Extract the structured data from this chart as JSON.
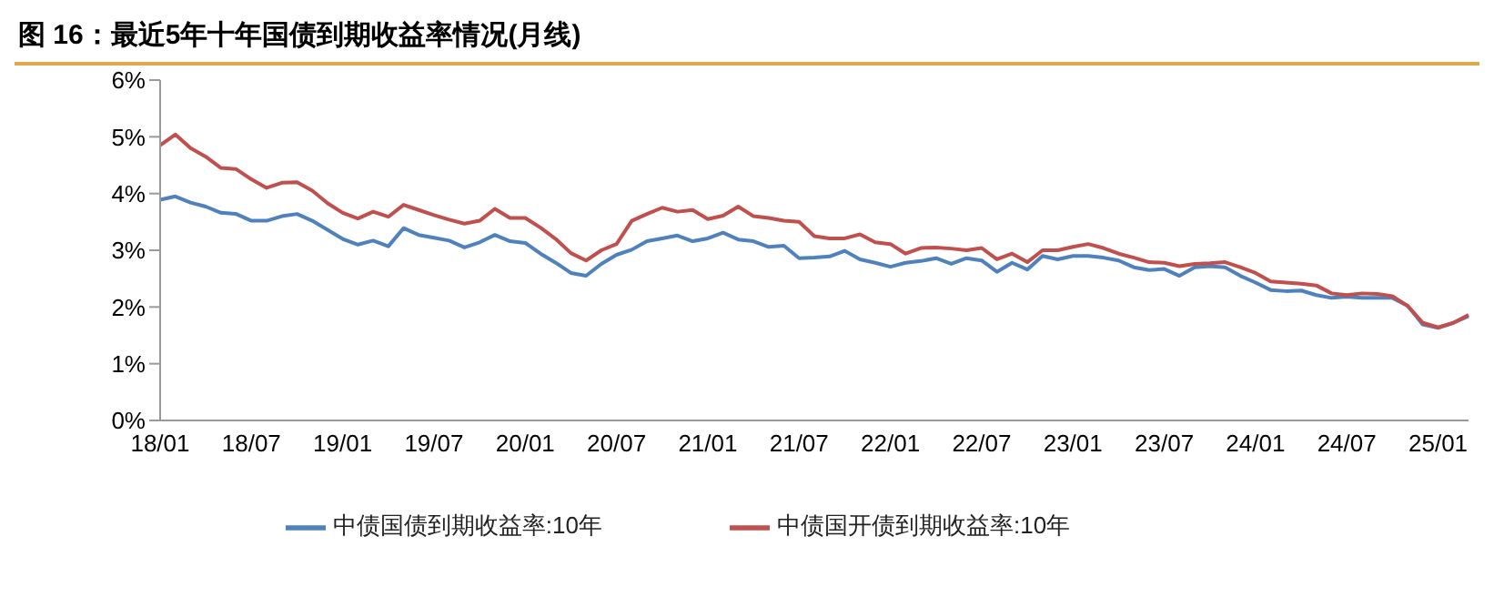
{
  "chart_data": {
    "type": "line",
    "title": "图 16：最近5年十年国债到期收益率情况(月线)",
    "categories": [
      "18/01",
      null,
      null,
      null,
      null,
      null,
      "18/07",
      null,
      null,
      null,
      null,
      null,
      "19/01",
      null,
      null,
      null,
      null,
      null,
      "19/07",
      null,
      null,
      null,
      null,
      null,
      "20/01",
      null,
      null,
      null,
      null,
      null,
      "20/07",
      null,
      null,
      null,
      null,
      null,
      "21/01",
      null,
      null,
      null,
      null,
      null,
      "21/07",
      null,
      null,
      null,
      null,
      null,
      "22/01",
      null,
      null,
      null,
      null,
      null,
      "22/07",
      null,
      null,
      null,
      null,
      null,
      "23/01",
      null,
      null,
      null,
      null,
      null,
      "23/07",
      null,
      null,
      null,
      null,
      null,
      "24/01",
      null,
      null,
      null,
      null,
      null,
      "24/07",
      null,
      null,
      null,
      null,
      null,
      "25/01",
      null,
      null
    ],
    "series": [
      {
        "name": "中债国债到期收益率:10年",
        "color": "#4f81bd",
        "values": [
          3.89,
          3.95,
          3.84,
          3.77,
          3.66,
          3.64,
          3.52,
          3.52,
          3.6,
          3.64,
          3.52,
          3.36,
          3.2,
          3.1,
          3.17,
          3.07,
          3.39,
          3.27,
          3.22,
          3.17,
          3.05,
          3.14,
          3.27,
          3.16,
          3.13,
          2.94,
          2.78,
          2.6,
          2.55,
          2.76,
          2.92,
          3.01,
          3.16,
          3.21,
          3.26,
          3.16,
          3.21,
          3.31,
          3.19,
          3.16,
          3.06,
          3.08,
          2.86,
          2.87,
          2.89,
          2.99,
          2.84,
          2.78,
          2.71,
          2.78,
          2.81,
          2.86,
          2.76,
          2.86,
          2.82,
          2.62,
          2.78,
          2.66,
          2.9,
          2.84,
          2.9,
          2.9,
          2.87,
          2.82,
          2.7,
          2.65,
          2.67,
          2.55,
          2.7,
          2.72,
          2.7,
          2.55,
          2.43,
          2.3,
          2.28,
          2.29,
          2.21,
          2.16,
          2.18,
          2.16,
          2.16,
          2.16,
          2.02,
          1.69,
          1.63,
          1.72,
          1.84
        ]
      },
      {
        "name": "中债国开债到期收益率:10年",
        "color": "#c0504d",
        "values": [
          4.85,
          5.04,
          4.8,
          4.65,
          4.45,
          4.43,
          4.25,
          4.1,
          4.19,
          4.2,
          4.05,
          3.83,
          3.66,
          3.56,
          3.68,
          3.59,
          3.8,
          3.71,
          3.62,
          3.54,
          3.47,
          3.52,
          3.73,
          3.57,
          3.57,
          3.4,
          3.2,
          2.95,
          2.82,
          3.0,
          3.11,
          3.52,
          3.64,
          3.75,
          3.68,
          3.71,
          3.55,
          3.61,
          3.77,
          3.6,
          3.57,
          3.52,
          3.5,
          3.25,
          3.21,
          3.21,
          3.28,
          3.14,
          3.11,
          2.94,
          3.04,
          3.05,
          3.03,
          3.0,
          3.04,
          2.84,
          2.94,
          2.79,
          3.0,
          3.0,
          3.06,
          3.11,
          3.04,
          2.94,
          2.87,
          2.79,
          2.78,
          2.72,
          2.76,
          2.77,
          2.79,
          2.7,
          2.6,
          2.45,
          2.43,
          2.41,
          2.38,
          2.24,
          2.21,
          2.24,
          2.23,
          2.19,
          2.02,
          1.72,
          1.64,
          1.72,
          1.86
        ]
      }
    ],
    "ylim": [
      0,
      6
    ],
    "yticks": [
      {
        "value": 0,
        "label": "0%"
      },
      {
        "value": 1,
        "label": "1%"
      },
      {
        "value": 2,
        "label": "2%"
      },
      {
        "value": 3,
        "label": "3%"
      },
      {
        "value": 4,
        "label": "4%"
      },
      {
        "value": 5,
        "label": "5%"
      },
      {
        "value": 6,
        "label": "6%"
      }
    ],
    "grid": false,
    "legend": "bottom",
    "marker": "none",
    "line_style": "solid"
  }
}
